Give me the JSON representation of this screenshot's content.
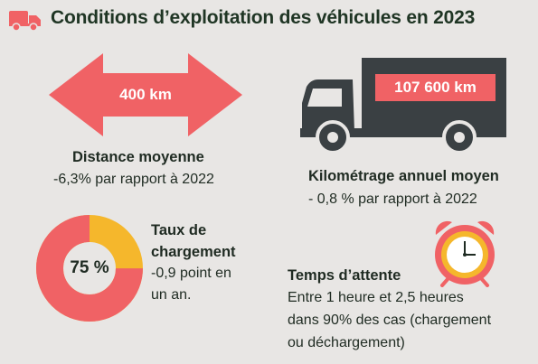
{
  "header": {
    "title": "Conditions d’exploitation des véhicules en 2023",
    "icon": "truck-icon",
    "accent_color": "#f06265"
  },
  "distance": {
    "value": "400 km",
    "label": "Distance moyenne",
    "change": "-6,3% par rapport à 2022",
    "icon": "double-arrow-icon"
  },
  "mileage": {
    "value": "107 600 km",
    "label": "Kilométrage annuel moyen",
    "change": "- 0,8 % par rapport à 2022",
    "icon": "truck-icon"
  },
  "load_rate": {
    "value": "75 %",
    "percent": 75,
    "label_line1": "Taux de",
    "label_line2": "chargement",
    "change_line1": "-0,9 point en",
    "change_line2": "un an.",
    "icon": "donut-chart",
    "fill_color": "#f06265",
    "rest_color": "#f5b72c"
  },
  "waiting_time": {
    "label": "Temps d’attente",
    "line1": "Entre 1 heure et 2,5 heures",
    "line2": "dans 90% des cas (chargement",
    "line3": "ou déchargement)",
    "icon": "clock-icon"
  },
  "colors": {
    "background": "#e8e6e4",
    "red": "#f06265",
    "dark": "#3a4043",
    "yellow": "#f5b72c"
  }
}
